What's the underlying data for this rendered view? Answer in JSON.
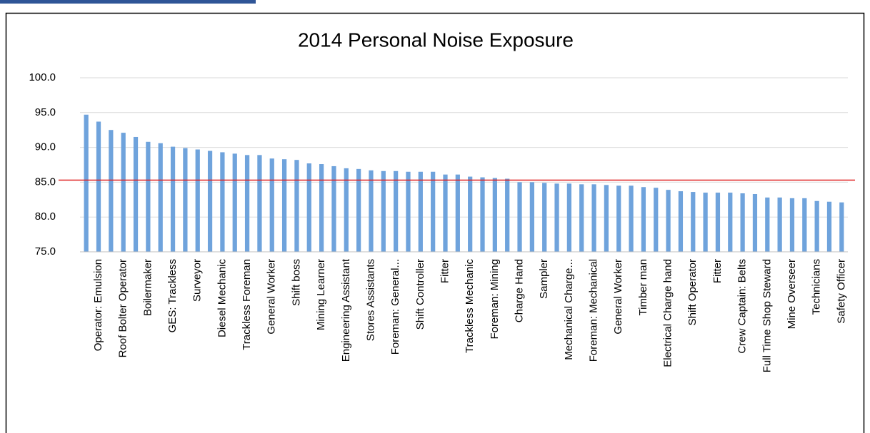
{
  "chart_data": {
    "type": "bar",
    "title": "2014 Personal Noise Exposure",
    "categories": [
      null,
      "Operator: Emulsion",
      null,
      "Roof Bolter Operator",
      null,
      "Boilermaker",
      null,
      "GES: Trackless",
      null,
      "Surveyor",
      null,
      "Diesel Mechanic",
      null,
      "Trackless Foreman",
      null,
      "General Worker",
      null,
      "Shift boss",
      null,
      "Mining Learner",
      null,
      "Engineering Assistant",
      null,
      "Stores Assistants",
      null,
      "Foreman: General...",
      null,
      "Shift Controller",
      null,
      "Fitter",
      null,
      "Trackless Mechanic",
      null,
      "Foreman: Mining",
      null,
      "Charge Hand",
      null,
      "Sampler",
      null,
      "Mechanical Charge...",
      null,
      "Foreman: Mechanical",
      null,
      "General Worker",
      null,
      "Timber man",
      null,
      "Electrical Charge hand",
      null,
      "Shift Operator",
      null,
      "Fitter",
      null,
      "Crew Captain: Belts",
      null,
      "Full Time Shop Steward",
      null,
      "Mine Overseer",
      null,
      "Technicians",
      null,
      "Safety Officer"
    ],
    "values": [
      94.7,
      93.7,
      92.5,
      92.1,
      91.5,
      90.8,
      90.6,
      90.1,
      89.9,
      89.7,
      89.5,
      89.3,
      89.1,
      88.9,
      88.9,
      88.4,
      88.3,
      88.2,
      87.7,
      87.6,
      87.3,
      87.0,
      86.9,
      86.7,
      86.6,
      86.6,
      86.5,
      86.5,
      86.5,
      86.1,
      86.1,
      85.8,
      85.7,
      85.6,
      85.5,
      85.0,
      85.0,
      84.9,
      84.8,
      84.8,
      84.7,
      84.7,
      84.6,
      84.5,
      84.5,
      84.3,
      84.2,
      83.9,
      83.7,
      83.6,
      83.5,
      83.5,
      83.5,
      83.4,
      83.3,
      82.8,
      82.8,
      82.7,
      82.7,
      82.3,
      82.2,
      82.1
    ],
    "color": "#6fa3dc",
    "ylim": [
      75,
      100
    ],
    "yticks": [
      {
        "value": 75,
        "label": "75.0"
      },
      {
        "value": 80,
        "label": "80.0"
      },
      {
        "value": 85,
        "label": "85.0"
      },
      {
        "value": 90,
        "label": "90.0"
      },
      {
        "value": 95,
        "label": "95.0"
      },
      {
        "value": 100,
        "label": "100.0"
      }
    ],
    "grid": true,
    "reference_line": {
      "value": 85.3,
      "color": "#e02020"
    }
  }
}
